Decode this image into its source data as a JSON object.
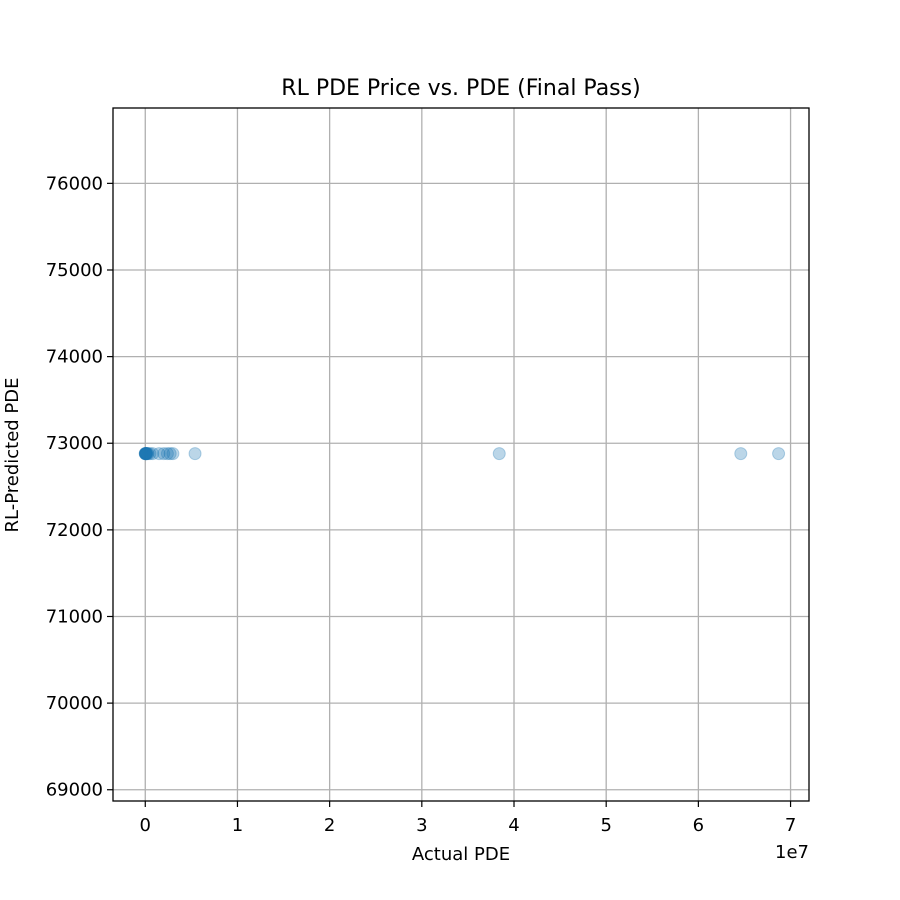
{
  "chart_data": {
    "type": "scatter",
    "title": "RL PDE Price vs. PDE (Final Pass)",
    "xlabel": "Actual PDE",
    "ylabel": "RL-Predicted PDE",
    "x_offset_label": "1e7",
    "x_multiplier": 10000000,
    "xlim": [
      -3500000,
      72000000
    ],
    "ylim": [
      68870,
      76870
    ],
    "x_ticks": [
      0,
      10000000,
      20000000,
      30000000,
      40000000,
      50000000,
      60000000,
      70000000
    ],
    "x_tick_labels": [
      "0",
      "1",
      "2",
      "3",
      "4",
      "5",
      "6",
      "7"
    ],
    "y_ticks": [
      69000,
      70000,
      71000,
      72000,
      73000,
      74000,
      75000,
      76000
    ],
    "y_tick_labels": [
      "69000",
      "70000",
      "71000",
      "72000",
      "73000",
      "74000",
      "75000",
      "76000"
    ],
    "grid": true,
    "marker_color": "#1f77b4",
    "marker_alpha": 0.3,
    "series": [
      {
        "x": [
          0,
          10000,
          20000,
          30000,
          50000,
          80000,
          100000,
          120000,
          150000,
          200000,
          300000,
          500000,
          800000,
          1500000,
          2000000,
          2400000,
          2700000,
          3000000,
          5400000,
          38400000,
          64600000,
          68700000
        ],
        "y": [
          72880,
          72880,
          72880,
          72880,
          72880,
          72880,
          72880,
          72880,
          72880,
          72880,
          72880,
          72880,
          72880,
          72880,
          72880,
          72880,
          72880,
          72880,
          72880,
          72880,
          72880,
          72880
        ]
      }
    ]
  }
}
